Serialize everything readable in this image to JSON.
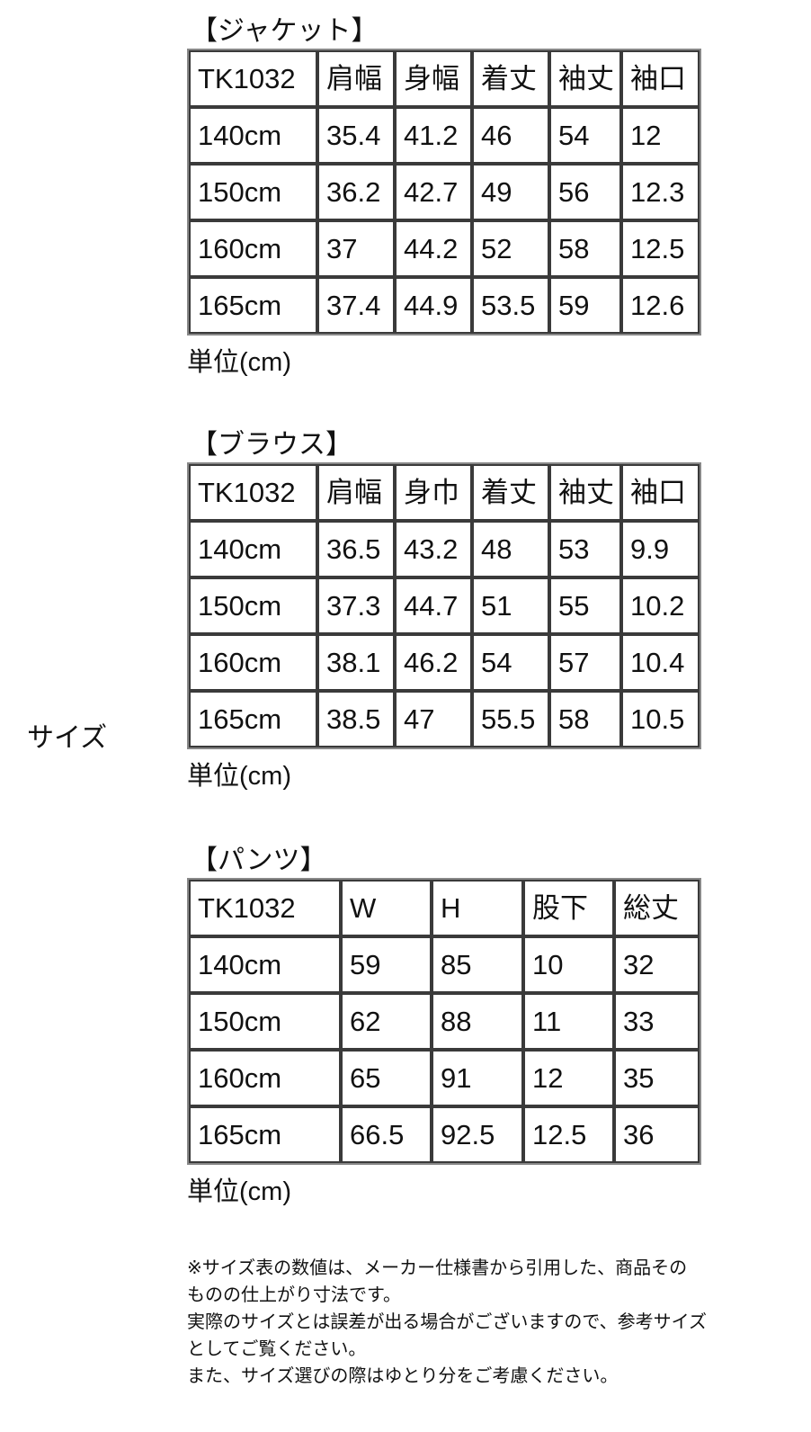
{
  "side_label": "サイズ",
  "tables": [
    {
      "title": "【ジャケット】",
      "header": [
        "TK1032",
        "肩幅",
        "身幅",
        "着丈",
        "袖丈",
        "袖口"
      ],
      "rows": [
        [
          "140cm",
          "35.4",
          "41.2",
          "46",
          "54",
          "12"
        ],
        [
          "150cm",
          "36.2",
          "42.7",
          "49",
          "56",
          "12.3"
        ],
        [
          "160cm",
          "37",
          "44.2",
          "52",
          "58",
          "12.5"
        ],
        [
          "165cm",
          "37.4",
          "44.9",
          "53.5",
          "59",
          "12.6"
        ]
      ],
      "unit": "単位(cm)"
    },
    {
      "title": "【ブラウス】",
      "header": [
        "TK1032",
        "肩幅",
        "身巾",
        "着丈",
        "袖丈",
        "袖口"
      ],
      "rows": [
        [
          "140cm",
          "36.5",
          "43.2",
          "48",
          "53",
          "9.9"
        ],
        [
          "150cm",
          "37.3",
          "44.7",
          "51",
          "55",
          "10.2"
        ],
        [
          "160cm",
          "38.1",
          "46.2",
          "54",
          "57",
          "10.4"
        ],
        [
          "165cm",
          "38.5",
          "47",
          "55.5",
          "58",
          "10.5"
        ]
      ],
      "unit": "単位(cm)"
    },
    {
      "title": "【パンツ】",
      "header": [
        "TK1032",
        "W",
        "H",
        "股下",
        "総丈"
      ],
      "rows": [
        [
          "140cm",
          "59",
          "85",
          "10",
          "32"
        ],
        [
          "150cm",
          "62",
          "88",
          "11",
          "33"
        ],
        [
          "160cm",
          "65",
          "91",
          "12",
          "35"
        ],
        [
          "165cm",
          "66.5",
          "92.5",
          "12.5",
          "36"
        ]
      ],
      "unit": "単位(cm)"
    }
  ],
  "note_lines": [
    "※サイズ表の数値は、メーカー仕様書から引用した、商品その",
    "ものの仕上がり寸法です。",
    "実際のサイズとは誤差が出る場合がございますので、参考サイズ",
    "としてご覧ください。",
    "また、サイズ選びの際はゆとり分をご考慮ください。"
  ]
}
